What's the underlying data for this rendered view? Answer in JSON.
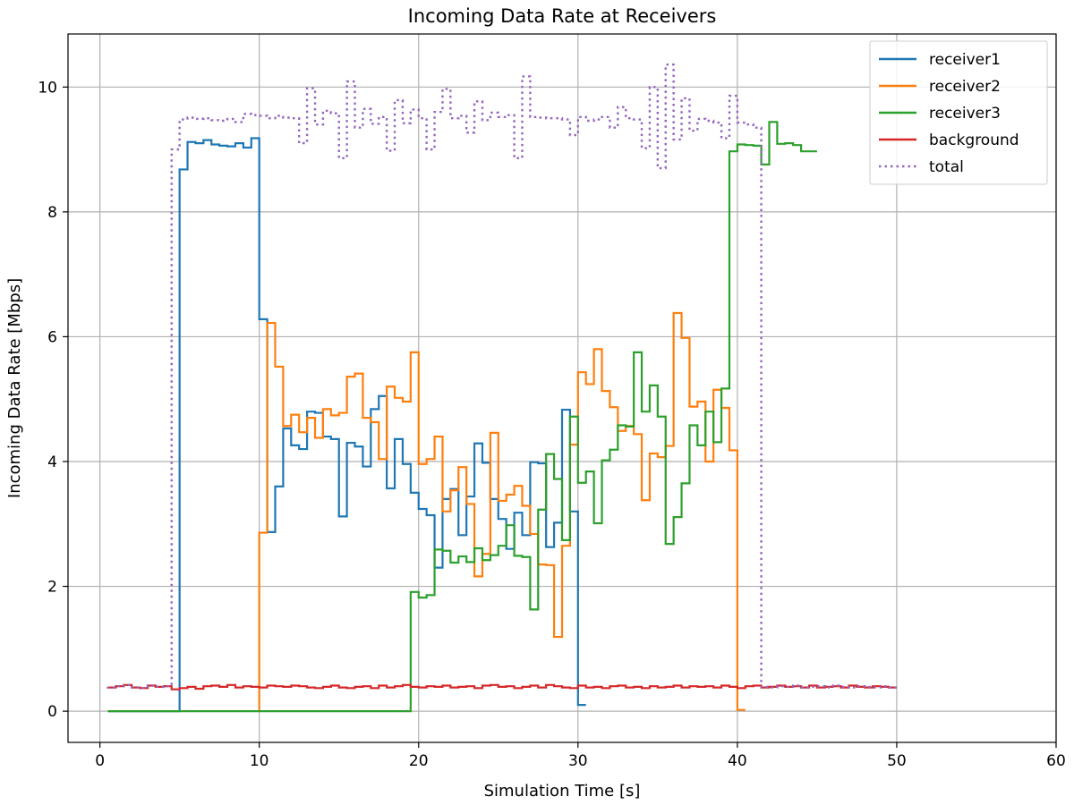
{
  "chart_data": {
    "type": "line",
    "step": true,
    "title": "Incoming Data Rate at Receivers",
    "xlabel": "Simulation Time [s]",
    "ylabel": "Incoming Data Rate [Mbps]",
    "xlim": [
      -2,
      60
    ],
    "ylim": [
      -0.5,
      10.85
    ],
    "xticks": [
      0,
      10,
      20,
      30,
      40,
      50,
      60
    ],
    "yticks": [
      0,
      2,
      4,
      6,
      8,
      10
    ],
    "grid": true,
    "legend_position": "top-right",
    "series": [
      {
        "name": "receiver1",
        "color": "#1f77b4",
        "style": "solid",
        "x": [
          0.5,
          1,
          1.5,
          2,
          2.5,
          3,
          3.5,
          4,
          4.5,
          5,
          5.5,
          6,
          6.5,
          7,
          7.5,
          8,
          8.5,
          9,
          9.5,
          10,
          10.5,
          11,
          11.5,
          12,
          12.5,
          13,
          13.5,
          14,
          14.5,
          15,
          15.5,
          16,
          16.5,
          17,
          17.5,
          18,
          18.5,
          19,
          19.5,
          20,
          20.5,
          21,
          21.5,
          22,
          22.5,
          23,
          23.5,
          24,
          24.5,
          25,
          25.5,
          26,
          26.5,
          27,
          27.5,
          28,
          28.5,
          29,
          29.5,
          30,
          30.5
        ],
        "y": [
          0,
          0,
          0,
          0,
          0,
          0,
          0,
          0,
          0,
          0,
          8.68,
          9.12,
          9.1,
          9.15,
          9.08,
          9.06,
          9.05,
          9.1,
          9.03,
          9.18,
          6.28,
          2.87,
          3.6,
          4.53,
          4.26,
          4.2,
          4.8,
          4.78,
          4.4,
          4.36,
          3.12,
          4.3,
          4.24,
          3.92,
          4.84,
          5.05,
          3.57,
          4.36,
          3.96,
          3.5,
          3.24,
          3.14,
          2.3,
          3.4,
          3.56,
          2.82,
          3.44,
          4.29,
          3.98,
          3.4,
          3.08,
          2.6,
          3.18,
          2.82,
          3.99,
          3.97,
          2.63,
          3.02,
          4.83,
          3.2,
          0.1
        ]
      },
      {
        "name": "receiver2",
        "color": "#ff7f0e",
        "style": "solid",
        "x": [
          10,
          10.5,
          11,
          11.5,
          12,
          12.5,
          13,
          13.5,
          14,
          14.5,
          15,
          15.5,
          16,
          16.5,
          17,
          17.5,
          18,
          18.5,
          19,
          19.5,
          20,
          20.5,
          21,
          21.5,
          22,
          22.5,
          23,
          23.5,
          24,
          24.5,
          25,
          25.5,
          26,
          26.5,
          27,
          27.5,
          28,
          28.5,
          29,
          29.5,
          30,
          30.5,
          31,
          31.5,
          32,
          32.5,
          33,
          33.5,
          34,
          34.5,
          35,
          35.5,
          36,
          36.5,
          37,
          37.5,
          38,
          38.5,
          39,
          39.5,
          40,
          40.5
        ],
        "y": [
          0,
          2.86,
          6.22,
          5.52,
          4.57,
          4.75,
          4.47,
          4.7,
          4.38,
          4.84,
          4.74,
          4.78,
          5.36,
          5.41,
          4.7,
          4.63,
          4.04,
          5.2,
          5.02,
          4.96,
          5.75,
          3.96,
          4.04,
          4.4,
          3.2,
          3.54,
          3.91,
          3.32,
          2.16,
          2.52,
          4.46,
          3.37,
          3.47,
          3.61,
          3.29,
          2.84,
          2.35,
          2.34,
          1.19,
          2.65,
          4.27,
          5.43,
          5.24,
          5.8,
          5.13,
          4.87,
          4.49,
          4.57,
          4.44,
          3.38,
          4.13,
          4.07,
          4.25,
          6.38,
          5.98,
          4.88,
          4.96,
          4.0,
          5.15,
          4.86,
          4.18,
          0.02
        ]
      },
      {
        "name": "receiver3",
        "color": "#2ca02c",
        "style": "solid",
        "x": [
          0.5,
          1,
          1.5,
          2,
          2.5,
          3,
          3.5,
          4,
          4.5,
          5,
          5.5,
          6,
          6.5,
          7,
          7.5,
          8,
          8.5,
          9,
          9.5,
          10,
          10.5,
          11,
          11.5,
          12,
          12.5,
          13,
          13.5,
          14,
          14.5,
          15,
          15.5,
          16,
          16.5,
          17,
          17.5,
          18,
          18.5,
          19,
          19.5,
          20,
          20.5,
          21,
          21.5,
          22,
          22.5,
          23,
          23.5,
          24,
          24.5,
          25,
          25.5,
          26,
          26.5,
          27,
          27.5,
          28,
          28.5,
          29,
          29.5,
          30,
          30.5,
          31,
          31.5,
          32,
          32.5,
          33,
          33.5,
          34,
          34.5,
          35,
          35.5,
          36,
          36.5,
          37,
          37.5,
          38,
          38.5,
          39,
          39.5,
          40,
          40.5,
          41,
          41.5,
          42,
          42.5,
          43,
          43.5,
          44,
          44.5,
          45
        ],
        "y": [
          0,
          0,
          0,
          0,
          0,
          0,
          0,
          0,
          0,
          0,
          0,
          0,
          0,
          0,
          0,
          0,
          0,
          0,
          0,
          0,
          0,
          0,
          0,
          0,
          0,
          0,
          0,
          0,
          0,
          0,
          0,
          0,
          0,
          0,
          0,
          0,
          0,
          0,
          0,
          1.91,
          1.82,
          1.86,
          2.59,
          2.57,
          2.38,
          2.48,
          2.39,
          2.61,
          2.42,
          2.5,
          2.65,
          2.98,
          2.49,
          2.47,
          1.63,
          3.23,
          4.12,
          3.72,
          2.74,
          4.72,
          3.66,
          3.84,
          3.01,
          4.02,
          4.19,
          4.58,
          4.56,
          5.75,
          4.8,
          5.22,
          4.72,
          2.68,
          3.11,
          3.65,
          4.58,
          4.26,
          4.8,
          4.31,
          5.17,
          8.97,
          9.08,
          9.07,
          9.06,
          8.76,
          9.44,
          9.09,
          9.1,
          9.07,
          8.97,
          8.97
        ]
      },
      {
        "name": "background",
        "color": "#d62728",
        "style": "solid",
        "x": [
          0.5,
          1,
          1.5,
          2,
          2.5,
          3,
          3.5,
          4,
          4.5,
          5,
          5.5,
          6,
          6.5,
          7,
          7.5,
          8,
          8.5,
          9,
          9.5,
          10,
          10.5,
          11,
          11.5,
          12,
          12.5,
          13,
          13.5,
          14,
          14.5,
          15,
          15.5,
          16,
          16.5,
          17,
          17.5,
          18,
          18.5,
          19,
          19.5,
          20,
          20.5,
          21,
          21.5,
          22,
          22.5,
          23,
          23.5,
          24,
          24.5,
          25,
          25.5,
          26,
          26.5,
          27,
          27.5,
          28,
          28.5,
          29,
          29.5,
          30,
          30.5,
          31,
          31.5,
          32,
          32.5,
          33,
          33.5,
          34,
          34.5,
          35,
          35.5,
          36,
          36.5,
          37,
          37.5,
          38,
          38.5,
          39,
          39.5,
          40,
          40.5,
          41,
          41.5,
          42,
          42.5,
          43,
          43.5,
          44,
          44.5,
          45,
          45.5,
          46,
          46.5,
          47,
          47.5,
          48,
          48.5,
          49,
          49.5,
          50
        ],
        "y": [
          0.39,
          0.38,
          0.4,
          0.42,
          0.38,
          0.37,
          0.41,
          0.39,
          0.4,
          0.35,
          0.37,
          0.39,
          0.36,
          0.4,
          0.41,
          0.39,
          0.42,
          0.38,
          0.4,
          0.39,
          0.38,
          0.41,
          0.4,
          0.39,
          0.41,
          0.4,
          0.38,
          0.37,
          0.39,
          0.41,
          0.38,
          0.37,
          0.39,
          0.4,
          0.37,
          0.41,
          0.38,
          0.4,
          0.42,
          0.39,
          0.38,
          0.4,
          0.39,
          0.41,
          0.38,
          0.39,
          0.4,
          0.37,
          0.41,
          0.42,
          0.39,
          0.4,
          0.37,
          0.39,
          0.41,
          0.38,
          0.42,
          0.4,
          0.38,
          0.37,
          0.41,
          0.38,
          0.39,
          0.37,
          0.4,
          0.41,
          0.38,
          0.39,
          0.37,
          0.4,
          0.38,
          0.39,
          0.41,
          0.38,
          0.4,
          0.39,
          0.4,
          0.38,
          0.41,
          0.39,
          0.37,
          0.4,
          0.41,
          0.38,
          0.39,
          0.41,
          0.39,
          0.4,
          0.38,
          0.41,
          0.38,
          0.39,
          0.4,
          0.38,
          0.41,
          0.39,
          0.38,
          0.4,
          0.39,
          0.38
        ]
      },
      {
        "name": "total",
        "color": "#9467bd",
        "style": "dotted",
        "x": [
          0.5,
          1,
          1.5,
          2,
          2.5,
          3,
          3.5,
          4,
          4.5,
          5,
          5.5,
          6,
          6.5,
          7,
          7.5,
          8,
          8.5,
          9,
          9.5,
          10,
          10.5,
          11,
          11.5,
          12,
          12.5,
          13,
          13.5,
          14,
          14.5,
          15,
          15.5,
          16,
          16.5,
          17,
          17.5,
          18,
          18.5,
          19,
          19.5,
          20,
          20.5,
          21,
          21.5,
          22,
          22.5,
          23,
          23.5,
          24,
          24.5,
          25,
          25.5,
          26,
          26.5,
          27,
          27.5,
          28,
          28.5,
          29,
          29.5,
          30,
          30.5,
          31,
          31.5,
          32,
          32.5,
          33,
          33.5,
          34,
          34.5,
          35,
          35.5,
          36,
          36.5,
          37,
          37.5,
          38,
          38.5,
          39,
          39.5,
          40,
          40.5,
          41,
          41.5,
          42,
          42.5,
          43,
          43.5,
          44,
          44.5,
          45,
          45.5,
          46,
          46.5,
          47,
          47.5,
          48,
          48.5,
          49,
          49.5,
          50
        ],
        "y": [
          0.39,
          0.38,
          0.4,
          0.42,
          0.38,
          0.37,
          0.41,
          0.39,
          0.4,
          9.0,
          9.48,
          9.51,
          9.49,
          9.5,
          9.47,
          9.46,
          9.49,
          9.44,
          9.57,
          9.55,
          9.54,
          9.5,
          9.54,
          9.51,
          9.5,
          9.1,
          9.98,
          9.4,
          9.62,
          9.58,
          8.86,
          10.09,
          9.35,
          9.65,
          9.41,
          9.52,
          8.98,
          9.79,
          9.42,
          9.64,
          9.5,
          9.0,
          9.6,
          9.97,
          9.5,
          9.54,
          9.27,
          9.77,
          9.47,
          9.59,
          9.52,
          9.55,
          8.86,
          10.17,
          9.52,
          9.51,
          9.5,
          9.5,
          9.48,
          9.23,
          9.52,
          9.46,
          9.48,
          9.52,
          9.35,
          9.68,
          9.5,
          9.48,
          9.02,
          10.0,
          8.7,
          10.36,
          9.16,
          9.82,
          9.3,
          9.49,
          9.46,
          9.43,
          9.18,
          9.86,
          9.43,
          9.4,
          9.35,
          0.39,
          0.38,
          0.4,
          0.39,
          0.41,
          0.38,
          0.39,
          0.4,
          0.38,
          0.41,
          0.39,
          0.38,
          0.4,
          0.39,
          0.38,
          0.4,
          0.38
        ]
      }
    ]
  }
}
